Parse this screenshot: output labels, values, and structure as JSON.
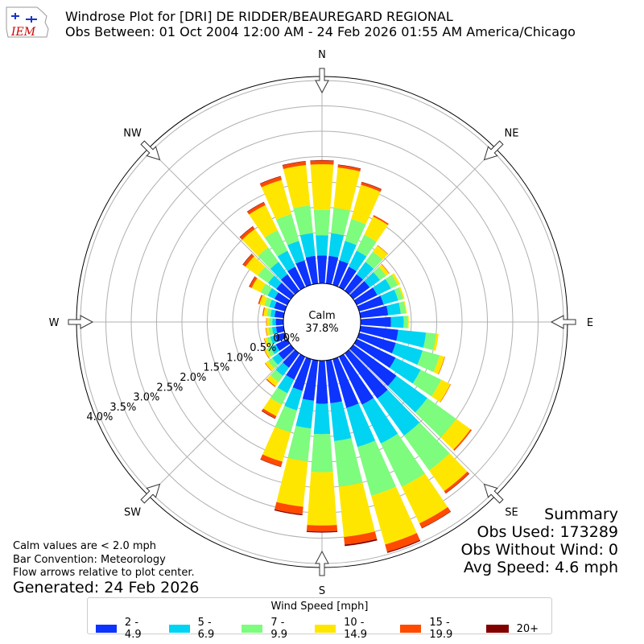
{
  "header": {
    "title": "Windrose Plot for [DRI] DE RIDDER/BEAUREGARD REGIONAL",
    "subtitle": "Obs Between: 01 Oct 2004 12:00 AM - 24 Feb 2026 01:55 AM America/Chicago",
    "logo_text": "IEM"
  },
  "summary": {
    "heading": "Summary",
    "obs_used": "Obs Used: 173289",
    "obs_without_wind": "Obs Without Wind: 0",
    "avg_speed": "Avg Speed: 4.6 mph"
  },
  "notes": {
    "line1": "Calm values are < 2.0 mph",
    "line2": "Bar Convention: Meteorology",
    "line3": "Flow arrows relative to plot center.",
    "generated": "Generated: 24 Feb 2026"
  },
  "legend": {
    "title": "Wind Speed [mph]",
    "items": [
      {
        "label": "2 - 4.9",
        "color": "#0d33ff"
      },
      {
        "label": "5 - 6.9",
        "color": "#00d4f2"
      },
      {
        "label": "7 - 9.9",
        "color": "#7dfc7d"
      },
      {
        "label": "10 - 14.9",
        "color": "#ffe600"
      },
      {
        "label": "15 - 19.9",
        "color": "#ff4a00"
      },
      {
        "label": "20+",
        "color": "#800000"
      }
    ]
  },
  "chart_data": {
    "type": "windrose",
    "calm_label": "Calm",
    "calm_value": "37.8%",
    "radial_ticks": [
      "0.0%",
      "0.5%",
      "1.0%",
      "1.5%",
      "2.0%",
      "2.5%",
      "3.0%",
      "3.5%",
      "4.0%"
    ],
    "radial_max": 4.0,
    "directions": [
      "N",
      "NE",
      "E",
      "SE",
      "S",
      "SW",
      "W",
      "NW"
    ],
    "direction_angles": [
      0,
      45,
      90,
      135,
      180,
      225,
      270,
      315
    ],
    "bins": [
      {
        "name": "2 - 4.9",
        "color": "#0d33ff"
      },
      {
        "name": "5 - 6.9",
        "color": "#00d4f2"
      },
      {
        "name": "7 - 9.9",
        "color": "#7dfc7d"
      },
      {
        "name": "10 - 14.9",
        "color": "#ffe600"
      },
      {
        "name": "15 - 19.9",
        "color": "#ff4a00"
      },
      {
        "name": "20+",
        "color": "#800000"
      }
    ],
    "sectors": [
      {
        "dir": 0,
        "values": [
          0.55,
          0.4,
          0.5,
          0.9,
          0.07,
          0.01
        ]
      },
      {
        "dir": 10,
        "values": [
          0.55,
          0.45,
          0.5,
          0.8,
          0.05,
          0.01
        ]
      },
      {
        "dir": 20,
        "values": [
          0.5,
          0.4,
          0.45,
          0.7,
          0.05,
          0.01
        ]
      },
      {
        "dir": 30,
        "values": [
          0.45,
          0.35,
          0.35,
          0.4,
          0.03,
          0.0
        ]
      },
      {
        "dir": 40,
        "values": [
          0.4,
          0.3,
          0.25,
          0.15,
          0.01,
          0.0
        ]
      },
      {
        "dir": 50,
        "values": [
          0.4,
          0.25,
          0.15,
          0.07,
          0.01,
          0.0
        ]
      },
      {
        "dir": 60,
        "values": [
          0.45,
          0.3,
          0.15,
          0.05,
          0.0,
          0.0
        ]
      },
      {
        "dir": 70,
        "values": [
          0.5,
          0.3,
          0.1,
          0.03,
          0.0,
          0.0
        ]
      },
      {
        "dir": 80,
        "values": [
          0.55,
          0.25,
          0.1,
          0.02,
          0.0,
          0.0
        ]
      },
      {
        "dir": 90,
        "values": [
          0.6,
          0.25,
          0.08,
          0.02,
          0.0,
          0.0
        ]
      },
      {
        "dir": 100,
        "values": [
          0.75,
          0.55,
          0.2,
          0.05,
          0.0,
          0.0
        ]
      },
      {
        "dir": 110,
        "values": [
          0.75,
          0.55,
          0.35,
          0.1,
          0.01,
          0.0
        ]
      },
      {
        "dir": 120,
        "values": [
          0.85,
          0.55,
          0.45,
          0.2,
          0.01,
          0.0
        ]
      },
      {
        "dir": 130,
        "values": [
          1.05,
          0.75,
          0.7,
          0.35,
          0.03,
          0.0
        ]
      },
      {
        "dir": 140,
        "values": [
          1.1,
          0.9,
          0.85,
          0.5,
          0.05,
          0.01
        ]
      },
      {
        "dir": 150,
        "values": [
          1.05,
          0.85,
          0.95,
          0.8,
          0.1,
          0.01
        ]
      },
      {
        "dir": 160,
        "values": [
          1.0,
          0.8,
          1.0,
          1.0,
          0.15,
          0.02
        ]
      },
      {
        "dir": 170,
        "values": [
          0.85,
          0.75,
          0.9,
          1.0,
          0.15,
          0.03
        ]
      },
      {
        "dir": 180,
        "values": [
          0.85,
          0.6,
          0.75,
          1.05,
          0.12,
          0.02
        ]
      },
      {
        "dir": 190,
        "values": [
          0.8,
          0.55,
          0.65,
          0.9,
          0.15,
          0.02
        ]
      },
      {
        "dir": 200,
        "values": [
          0.65,
          0.4,
          0.45,
          0.6,
          0.1,
          0.01
        ]
      },
      {
        "dir": 210,
        "values": [
          0.5,
          0.3,
          0.25,
          0.25,
          0.05,
          0.01
        ]
      },
      {
        "dir": 220,
        "values": [
          0.35,
          0.2,
          0.15,
          0.1,
          0.02,
          0.0
        ]
      },
      {
        "dir": 230,
        "values": [
          0.3,
          0.15,
          0.1,
          0.07,
          0.01,
          0.0
        ]
      },
      {
        "dir": 240,
        "values": [
          0.25,
          0.12,
          0.08,
          0.05,
          0.01,
          0.0
        ]
      },
      {
        "dir": 250,
        "values": [
          0.2,
          0.1,
          0.07,
          0.05,
          0.01,
          0.0
        ]
      },
      {
        "dir": 260,
        "values": [
          0.15,
          0.08,
          0.07,
          0.05,
          0.01,
          0.0
        ]
      },
      {
        "dir": 270,
        "values": [
          0.15,
          0.07,
          0.06,
          0.05,
          0.01,
          0.0
        ]
      },
      {
        "dir": 280,
        "values": [
          0.18,
          0.08,
          0.07,
          0.07,
          0.02,
          0.0
        ]
      },
      {
        "dir": 290,
        "values": [
          0.22,
          0.1,
          0.1,
          0.1,
          0.03,
          0.0
        ]
      },
      {
        "dir": 300,
        "values": [
          0.28,
          0.15,
          0.15,
          0.2,
          0.05,
          0.01
        ]
      },
      {
        "dir": 310,
        "values": [
          0.35,
          0.2,
          0.25,
          0.3,
          0.06,
          0.01
        ]
      },
      {
        "dir": 320,
        "values": [
          0.4,
          0.3,
          0.35,
          0.45,
          0.06,
          0.01
        ]
      },
      {
        "dir": 330,
        "values": [
          0.45,
          0.35,
          0.45,
          0.55,
          0.06,
          0.01
        ]
      },
      {
        "dir": 340,
        "values": [
          0.5,
          0.4,
          0.55,
          0.7,
          0.07,
          0.01
        ]
      },
      {
        "dir": 350,
        "values": [
          0.55,
          0.45,
          0.55,
          0.8,
          0.07,
          0.01
        ]
      }
    ]
  }
}
